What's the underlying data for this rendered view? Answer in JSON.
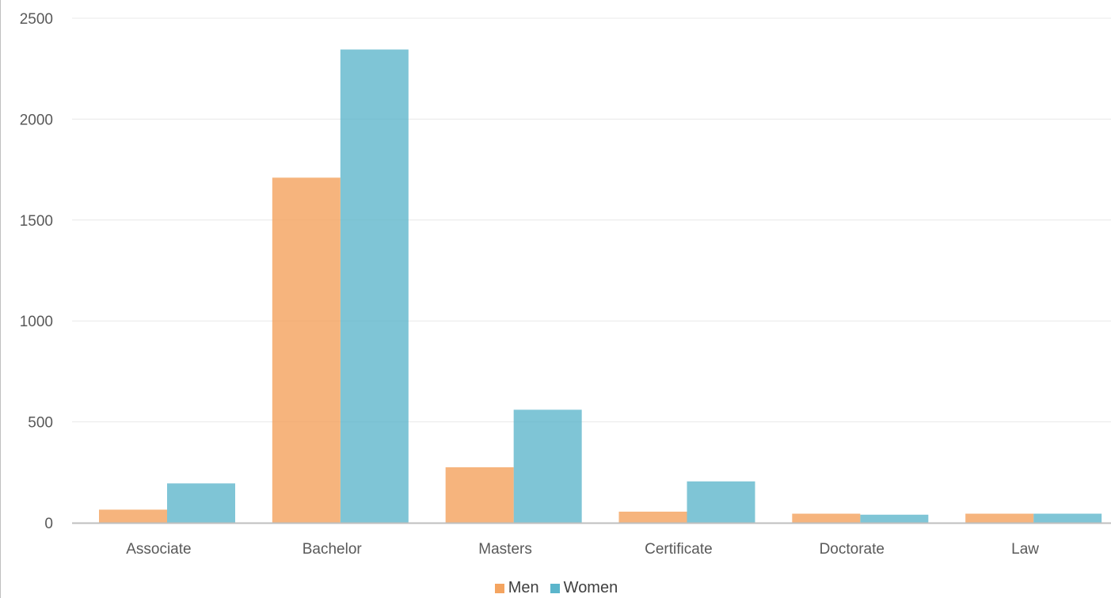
{
  "chart_data": {
    "type": "bar",
    "categories": [
      "Associate",
      "Bachelor",
      "Masters",
      "Certificate",
      "Doctorate",
      "Law"
    ],
    "series": [
      {
        "name": "Men",
        "color": "#F4A460",
        "values": [
          65,
          1710,
          275,
          55,
          45,
          45
        ]
      },
      {
        "name": "Women",
        "color": "#5BB5CB",
        "values": [
          195,
          2345,
          560,
          205,
          40,
          45
        ]
      }
    ],
    "yticks": [
      0,
      500,
      1000,
      1500,
      2000,
      2500
    ],
    "ylim": [
      0,
      2500
    ],
    "grid": true,
    "legend_position": "bottom",
    "colors": {
      "men": "#F4A460",
      "women": "#5BB5CB",
      "grid": "#e8e8e8",
      "axis": "#bfbfbf",
      "text": "#595959"
    }
  }
}
